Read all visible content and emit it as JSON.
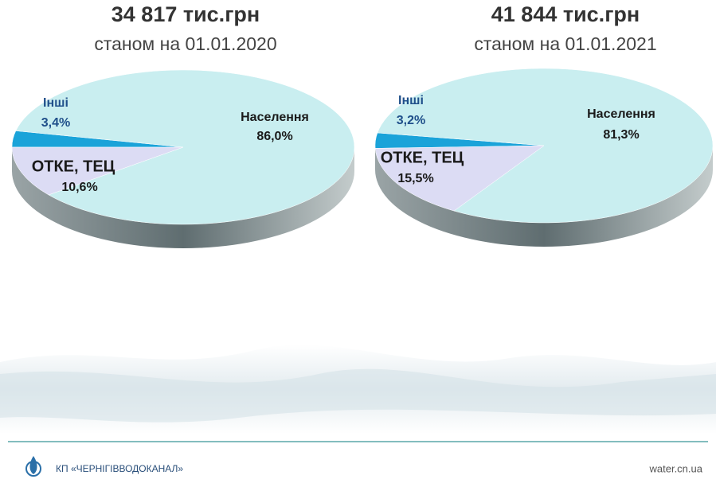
{
  "chart_data": [
    {
      "type": "pie",
      "title": "34 817 тис.грн",
      "subtitle": "станом на 01.01.2020",
      "categories": [
        "Інші",
        "Населення",
        "ОТКЕ, ТЕЦ"
      ],
      "values": [
        3.4,
        86.0,
        10.6
      ],
      "value_labels": [
        "3,4%",
        "86,0%",
        "10,6%"
      ],
      "colors": [
        "#1aa3d9",
        "#c9eef0",
        "#dcdcf4"
      ]
    },
    {
      "type": "pie",
      "title": "41 844 тис.грн",
      "subtitle": "станом на 01.01.2021",
      "categories": [
        "Інші",
        "Населення",
        "ОТКЕ, ТЕЦ"
      ],
      "values": [
        3.2,
        81.3,
        15.5
      ],
      "value_labels": [
        "3,2%",
        "81,3%",
        "15,5%"
      ],
      "colors": [
        "#1aa3d9",
        "#c9eef0",
        "#dcdcf4"
      ]
    }
  ],
  "footer": {
    "org": "КП «ЧЕРНІГІВВОДОКАНАЛ»",
    "site": "water.cn.ua"
  }
}
